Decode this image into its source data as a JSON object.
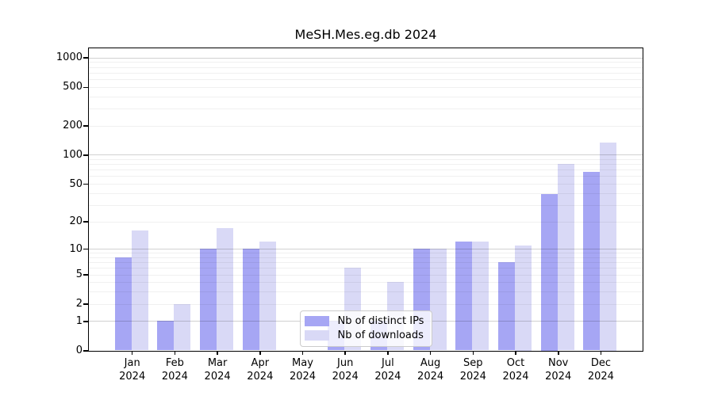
{
  "chart_data": {
    "type": "bar",
    "title": "MeSH.Mes.eg.db 2024",
    "year": "2024",
    "categories": [
      "Jan",
      "Feb",
      "Mar",
      "Apr",
      "May",
      "Jun",
      "Jul",
      "Aug",
      "Sep",
      "Oct",
      "Nov",
      "Dec"
    ],
    "series": [
      {
        "name": "Nb of distinct IPs",
        "color": "#a6a6f4",
        "values": [
          8,
          1,
          10,
          10,
          0,
          1,
          1,
          10,
          12,
          7,
          39,
          66
        ]
      },
      {
        "name": "Nb of downloads",
        "color": "#d9d9f6",
        "values": [
          16,
          2,
          17,
          12,
          0,
          6,
          4,
          10,
          12,
          11,
          80,
          135
        ]
      }
    ],
    "y_ticks": [
      0,
      1,
      2,
      5,
      10,
      20,
      50,
      100,
      200,
      500,
      1000
    ],
    "y_scale": "log10(1+x)",
    "ylim": [
      0,
      1260
    ],
    "xlabel": "",
    "ylabel": "",
    "grid": true,
    "legend_position": "lower-center"
  }
}
